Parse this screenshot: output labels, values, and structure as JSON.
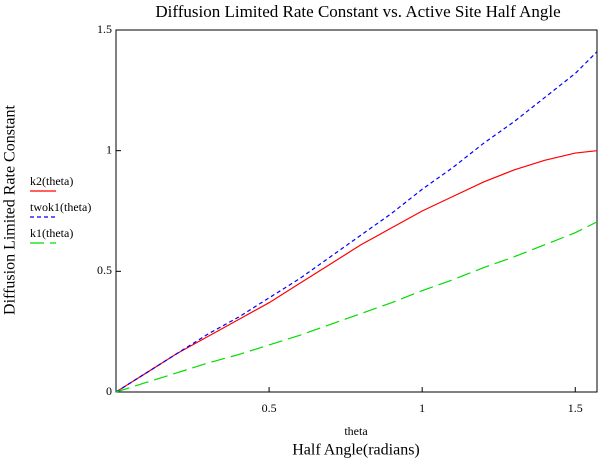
{
  "chart_data": {
    "type": "line",
    "title": "Diffusion Limited Rate Constant vs. Active Site Half Angle",
    "x_label": "Half Angle(radians)",
    "x_var": "theta",
    "y_label": "Diffusion Limited Rate Constant",
    "x": [
      0,
      0.1,
      0.2,
      0.3,
      0.4,
      0.5,
      0.6,
      0.7,
      0.8,
      0.9,
      1.0,
      1.1,
      1.2,
      1.3,
      1.4,
      1.5,
      1.571
    ],
    "series": [
      {
        "name": "k2(theta)",
        "color": "#ff0000",
        "dash": "none",
        "values": [
          0,
          0.08,
          0.16,
          0.23,
          0.3,
          0.37,
          0.45,
          0.53,
          0.61,
          0.68,
          0.75,
          0.81,
          0.87,
          0.92,
          0.96,
          0.99,
          1.0
        ]
      },
      {
        "name": "twok1(theta)",
        "color": "#0000ff",
        "dash": "4,3",
        "values": [
          0,
          0.08,
          0.16,
          0.24,
          0.31,
          0.39,
          0.47,
          0.56,
          0.65,
          0.74,
          0.84,
          0.93,
          1.03,
          1.12,
          1.22,
          1.32,
          1.41
        ]
      },
      {
        "name": "k1(theta)",
        "color": "#00dd00",
        "dash": "14,6",
        "values": [
          0,
          0.04,
          0.08,
          0.12,
          0.155,
          0.195,
          0.235,
          0.28,
          0.325,
          0.37,
          0.42,
          0.465,
          0.515,
          0.56,
          0.61,
          0.66,
          0.705
        ]
      }
    ],
    "xlim": [
      0,
      1.571
    ],
    "ylim": [
      0,
      1.5
    ],
    "xticks": [
      0.5,
      1,
      1.5
    ],
    "yticks": [
      0,
      0.5,
      1,
      1.5
    ]
  }
}
